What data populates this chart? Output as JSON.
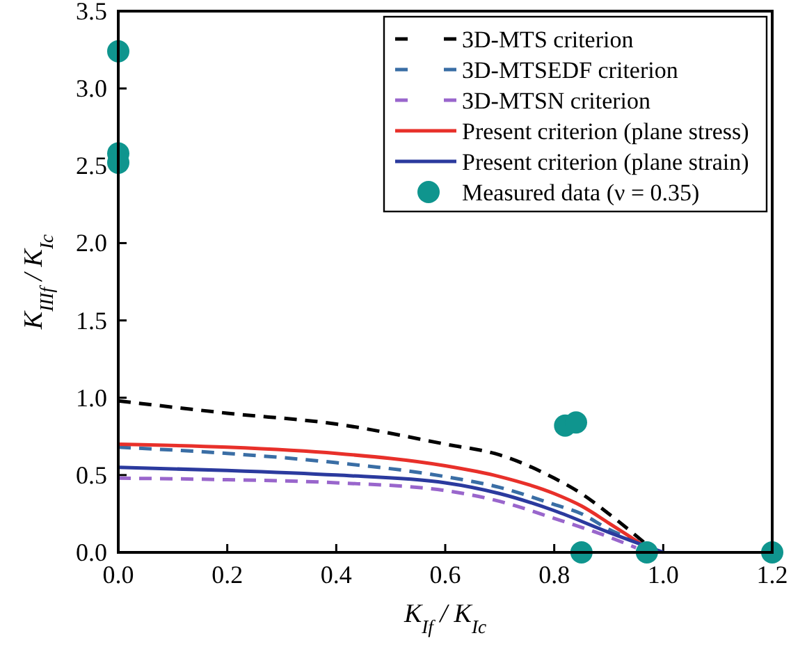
{
  "chart_data": {
    "type": "line",
    "xlabel": "K$_{If}$ / K$_{Ic}$",
    "ylabel": "K$_{IIIf}$ / K$_{Ic}$",
    "xlim": [
      0,
      1.2
    ],
    "xticks": [
      {
        "value": 0,
        "label": "0.0"
      },
      {
        "value": 0.2,
        "label": "0.2"
      },
      {
        "value": 0.4,
        "label": "0.4"
      },
      {
        "value": 0.6,
        "label": "0.6"
      },
      {
        "value": 0.8,
        "label": "0.8"
      },
      {
        "value": 1,
        "label": "1.0"
      },
      {
        "value": 1.2,
        "label": "1.2"
      }
    ],
    "ylim": [
      0,
      3.5
    ],
    "yticks": [
      {
        "value": 0,
        "label": "0.0"
      },
      {
        "value": 0.5,
        "label": "0.5"
      },
      {
        "value": 1,
        "label": "1.0"
      },
      {
        "value": 1.5,
        "label": "1.5"
      },
      {
        "value": 2,
        "label": "2.0"
      },
      {
        "value": 2.5,
        "label": "2.5"
      },
      {
        "value": 3,
        "label": "3.0"
      },
      {
        "value": 3.5,
        "label": "3.5"
      }
    ],
    "grid": false,
    "legend": "top right",
    "series": [
      {
        "name": "3D-MTS criterion",
        "color": "#000000",
        "line_style": "dashed",
        "x": [
          0,
          0.2,
          0.4,
          0.6,
          0.7,
          0.8,
          0.85,
          0.9,
          0.97
        ],
        "values": [
          0.98,
          0.9,
          0.83,
          0.7,
          0.63,
          0.48,
          0.38,
          0.25,
          0.05
        ]
      },
      {
        "name": "3D-MTSEDF criterion",
        "color": "#3a6ea5",
        "line_style": "dashed",
        "x": [
          0,
          0.2,
          0.4,
          0.6,
          0.7,
          0.8,
          0.85,
          0.9,
          0.97
        ],
        "values": [
          0.68,
          0.64,
          0.58,
          0.49,
          0.42,
          0.31,
          0.25,
          0.15,
          0.05
        ]
      },
      {
        "name": "3D-MTSN criterion",
        "color": "#9966cc",
        "line_style": "dashed",
        "x": [
          0,
          0.2,
          0.4,
          0.6,
          0.7,
          0.8,
          0.9,
          0.95
        ],
        "values": [
          0.48,
          0.47,
          0.45,
          0.4,
          0.33,
          0.22,
          0.1,
          0.03
        ]
      },
      {
        "name": "Present criterion (plane stress)",
        "color": "#e8302a",
        "line_style": "solid",
        "x": [
          0,
          0.2,
          0.4,
          0.6,
          0.7,
          0.8,
          0.85,
          0.9,
          0.97
        ],
        "values": [
          0.7,
          0.68,
          0.64,
          0.56,
          0.49,
          0.38,
          0.3,
          0.19,
          0.03
        ]
      },
      {
        "name": "Present criterion (plane strain)",
        "color": "#2b3a9e",
        "line_style": "solid",
        "x": [
          0,
          0.2,
          0.4,
          0.6,
          0.7,
          0.8,
          0.9,
          1.0
        ],
        "values": [
          0.55,
          0.53,
          0.5,
          0.45,
          0.38,
          0.27,
          0.13,
          0
        ]
      },
      {
        "name": "Measured data (ν = 0.35)",
        "type": "scatter",
        "color": "#0f958e",
        "marker": "circle",
        "x": [
          0,
          0,
          0,
          0.82,
          0.84,
          0.85,
          0.97,
          1.2
        ],
        "values": [
          3.24,
          2.58,
          2.52,
          0.82,
          0.84,
          0,
          0,
          0
        ]
      }
    ]
  }
}
